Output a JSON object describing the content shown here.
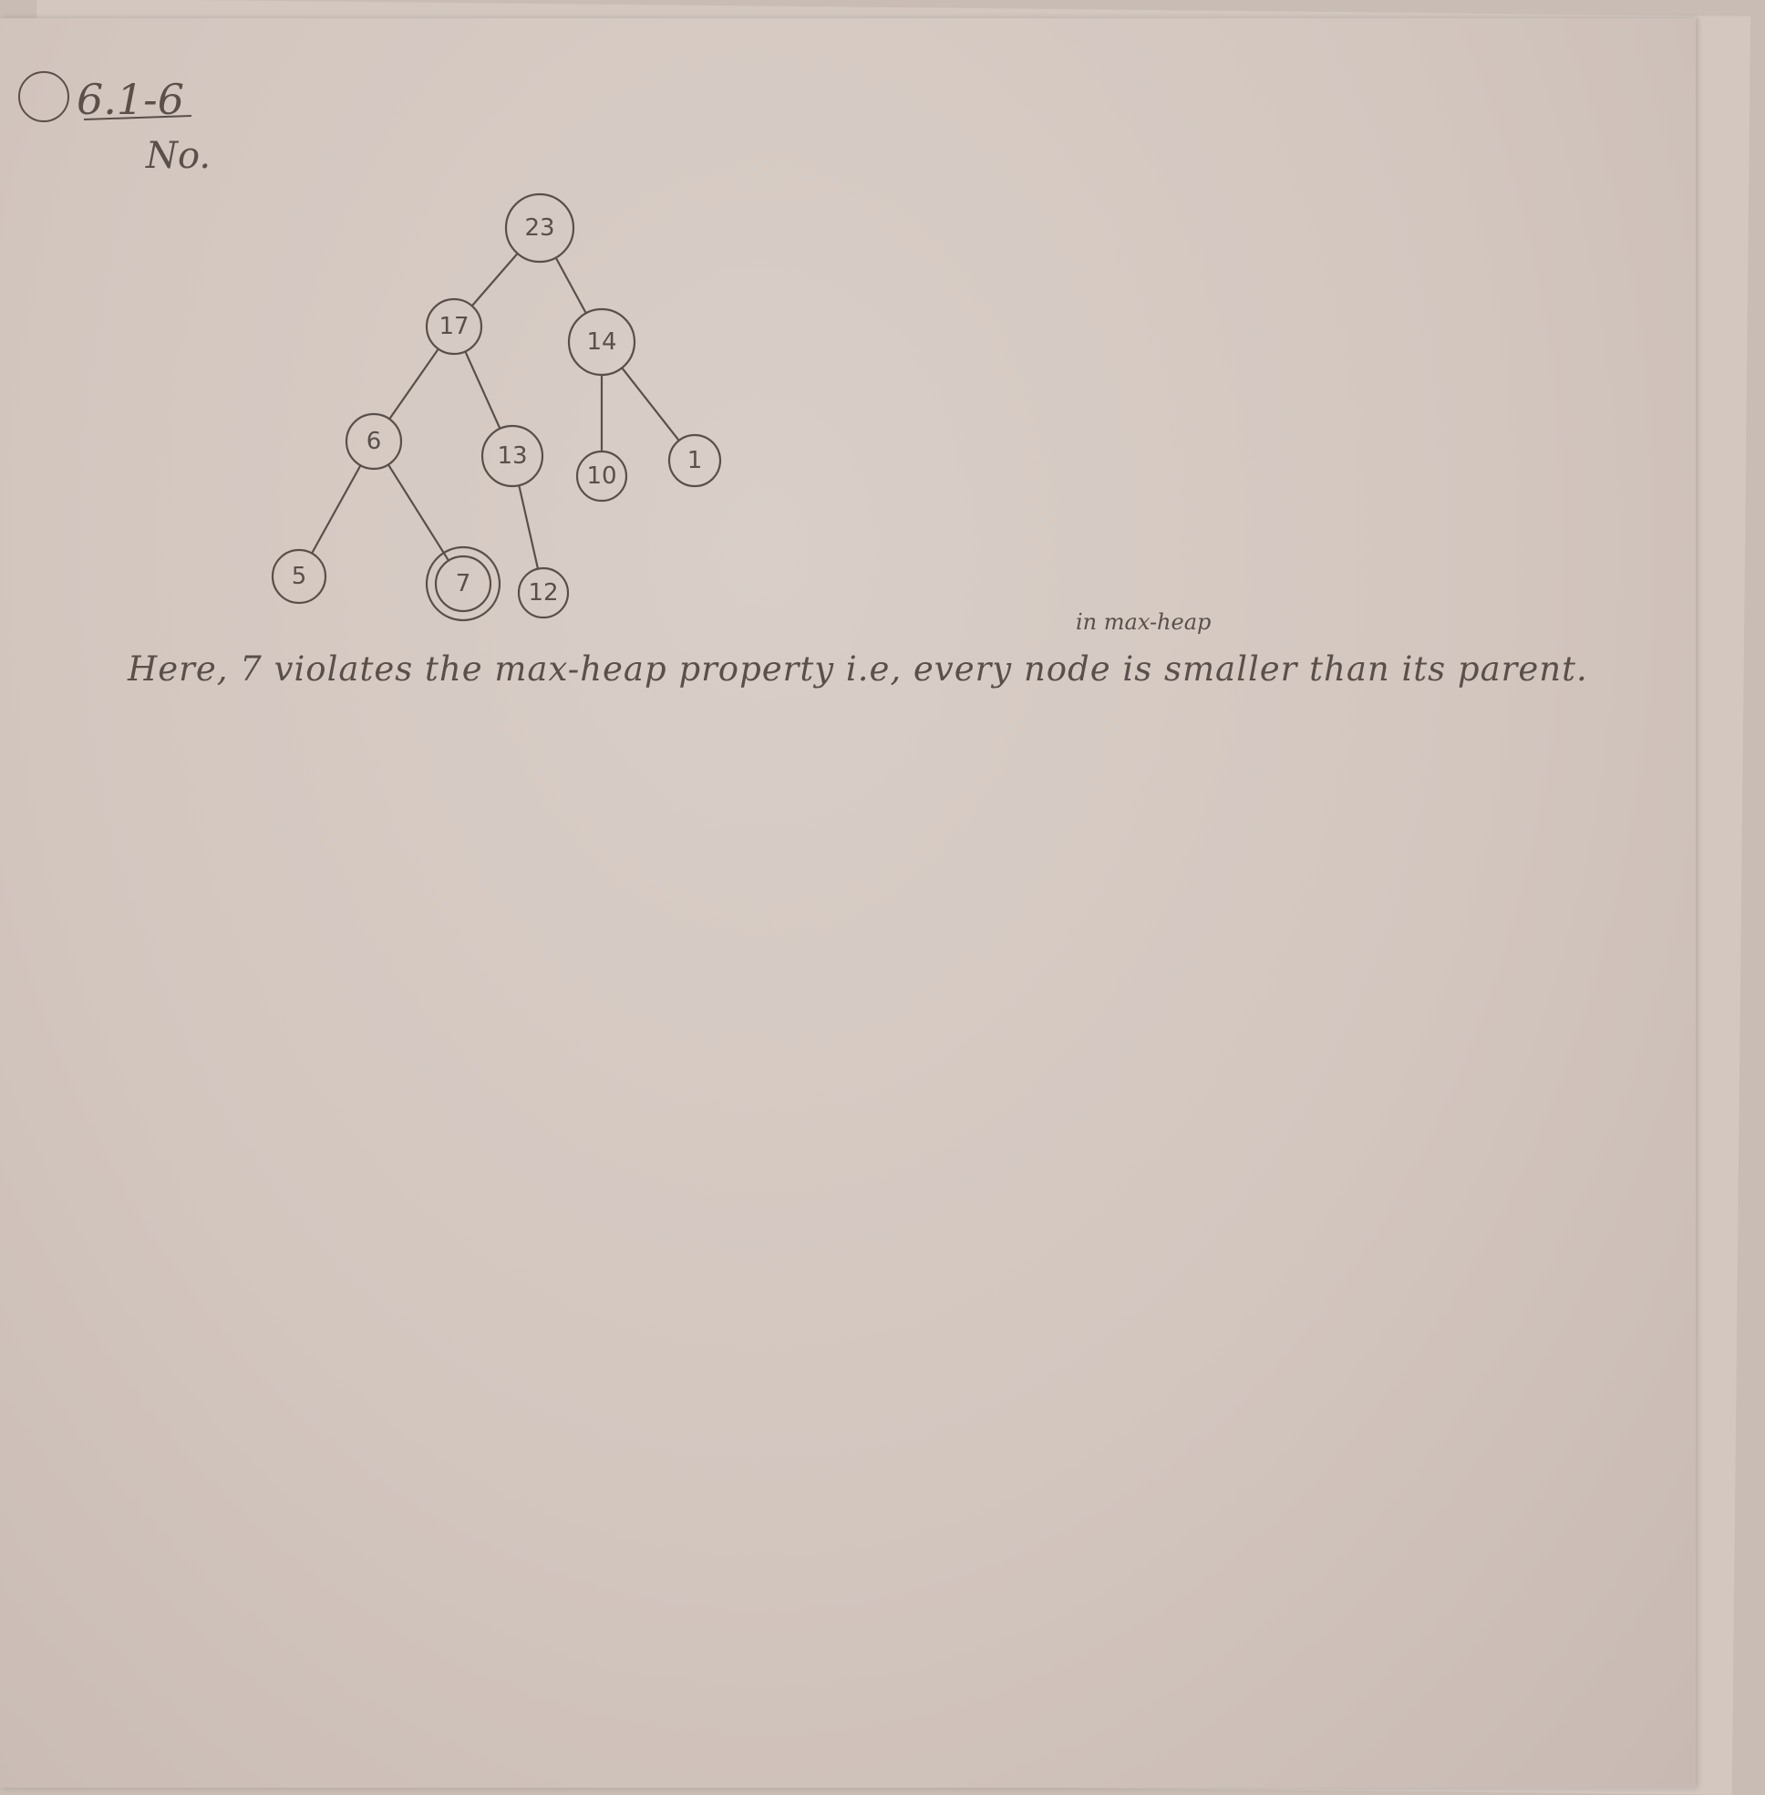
{
  "header": {
    "question_number": "6.1-6",
    "answer": "No."
  },
  "tree": {
    "nodes": [
      {
        "id": "n23",
        "value": "23"
      },
      {
        "id": "n17",
        "value": "17"
      },
      {
        "id": "n14",
        "value": "14"
      },
      {
        "id": "n6",
        "value": "6"
      },
      {
        "id": "n13",
        "value": "13"
      },
      {
        "id": "n10",
        "value": "10"
      },
      {
        "id": "n1",
        "value": "1"
      },
      {
        "id": "n5",
        "value": "5"
      },
      {
        "id": "n7",
        "value": "7",
        "highlighted": true
      },
      {
        "id": "n12",
        "value": "12"
      }
    ],
    "edges": [
      [
        "n23",
        "n17"
      ],
      [
        "n23",
        "n14"
      ],
      [
        "n17",
        "n6"
      ],
      [
        "n17",
        "n13"
      ],
      [
        "n14",
        "n10"
      ],
      [
        "n14",
        "n1"
      ],
      [
        "n6",
        "n5"
      ],
      [
        "n6",
        "n7"
      ],
      [
        "n13",
        "n12"
      ]
    ]
  },
  "notes": {
    "insertion": "in max-heap",
    "explanation": "Here, 7 violates the max-heap property i.e, every node is smaller than its parent."
  }
}
